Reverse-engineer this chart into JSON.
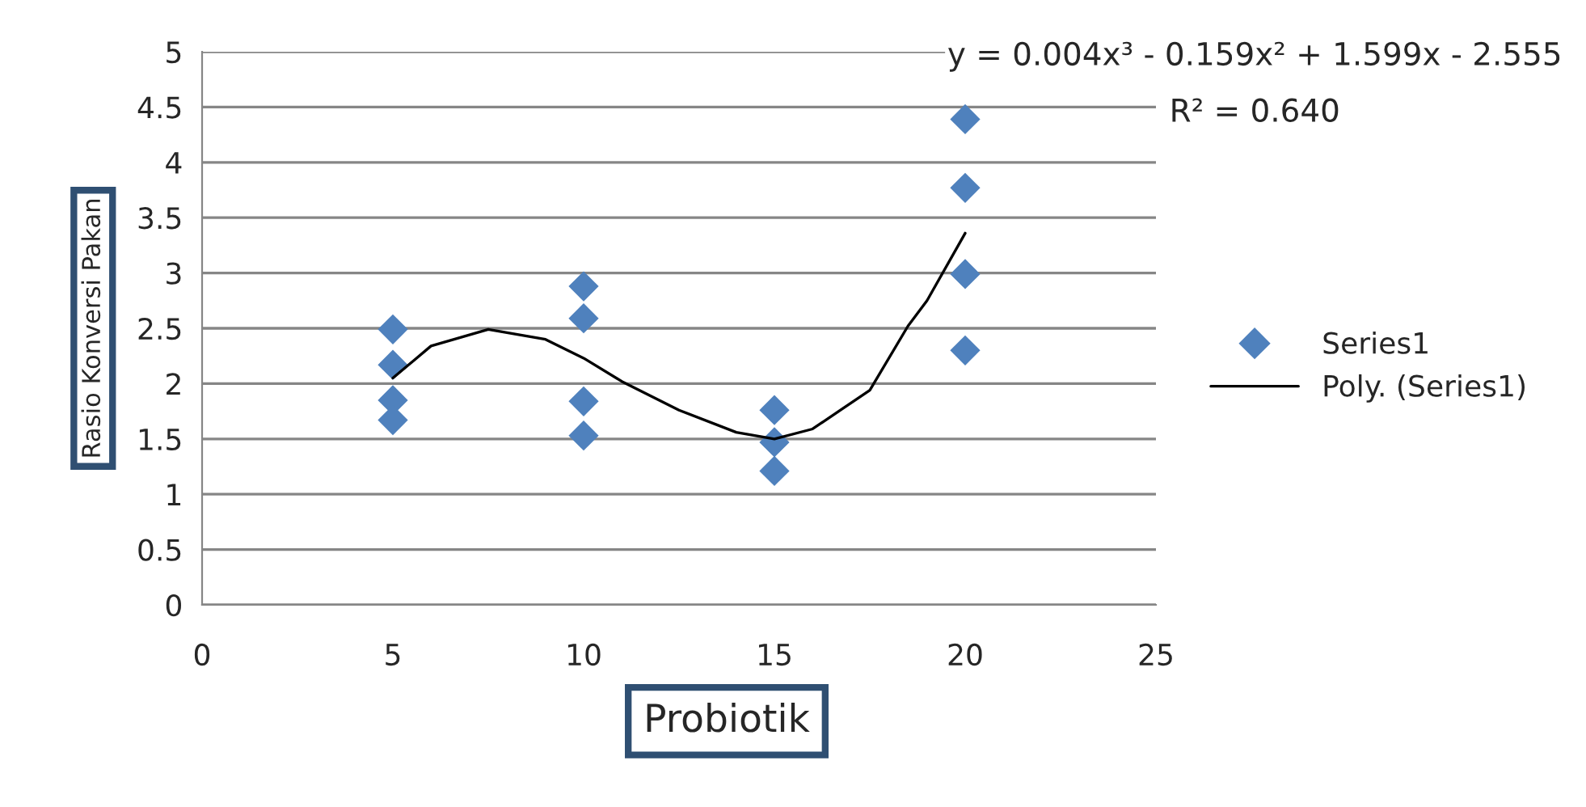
{
  "chart_data": {
    "type": "scatter",
    "xlabel": "Probiotik",
    "ylabel": "Rasio Konversi Pakan",
    "xlim": [
      0,
      25
    ],
    "xticks": [
      0,
      5,
      10,
      15,
      20,
      25
    ],
    "ylim": [
      0,
      5
    ],
    "yticks": [
      0,
      0.5,
      1,
      1.5,
      2,
      2.5,
      3,
      3.5,
      4,
      4.5,
      5
    ],
    "grid": "y",
    "legend": "right",
    "annotations": [
      "y = 0.004x³ - 0.159x² + 1.599x - 2.555",
      "R² = 0.640"
    ],
    "series": [
      {
        "name": "Series1",
        "marker": "diamond",
        "color": "#4f81bd",
        "x": [
          5,
          5,
          5,
          5,
          10,
          10,
          10,
          10,
          15,
          15,
          15,
          20,
          20,
          20,
          20
        ],
        "values": [
          2.49,
          2.17,
          1.85,
          1.67,
          2.88,
          2.59,
          1.84,
          1.53,
          1.76,
          1.47,
          1.21,
          4.39,
          3.77,
          2.99,
          2.3
        ]
      },
      {
        "name": "Poly. (Series1)",
        "type": "line",
        "color": "#000000",
        "line_style": "solid",
        "x": [
          5,
          6,
          7.5,
          9,
          10,
          11,
          12.5,
          14,
          15,
          16,
          17.5,
          18.5,
          19,
          20
        ],
        "values": [
          2.05,
          2.34,
          2.49,
          2.4,
          2.23,
          2.02,
          1.76,
          1.56,
          1.5,
          1.59,
          1.94,
          2.52,
          2.75,
          3.36
        ]
      }
    ]
  }
}
